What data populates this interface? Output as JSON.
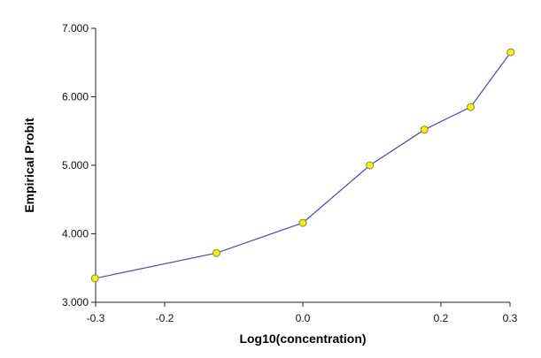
{
  "chart_data": {
    "type": "line",
    "title": "",
    "xlabel": "Log10(concentration)",
    "ylabel": "Empirical Probit",
    "xlim": [
      -0.3,
      0.3
    ],
    "ylim": [
      3.0,
      7.0
    ],
    "x_ticks": [
      -0.3,
      -0.2,
      0.0,
      0.2,
      0.3
    ],
    "x_tick_labels": [
      "-0.3",
      "-0.2",
      "0.0",
      "0.2",
      "0.3"
    ],
    "y_ticks": [
      3,
      4,
      5,
      6,
      7
    ],
    "y_tick_labels": [
      "3.000",
      "4.000",
      "5.000",
      "6.000",
      "7.000"
    ],
    "grid": false,
    "legend": "none",
    "series": [
      {
        "x": [
          -0.301,
          -0.125,
          0.0,
          0.097,
          0.176,
          0.243,
          0.301
        ],
        "y": [
          3.35,
          3.72,
          4.16,
          5.0,
          5.52,
          5.85,
          6.65
        ],
        "line_color": "#4a4aa8",
        "marker_fill": "#eeee22",
        "marker_stroke": "#8a8a1a"
      }
    ]
  }
}
